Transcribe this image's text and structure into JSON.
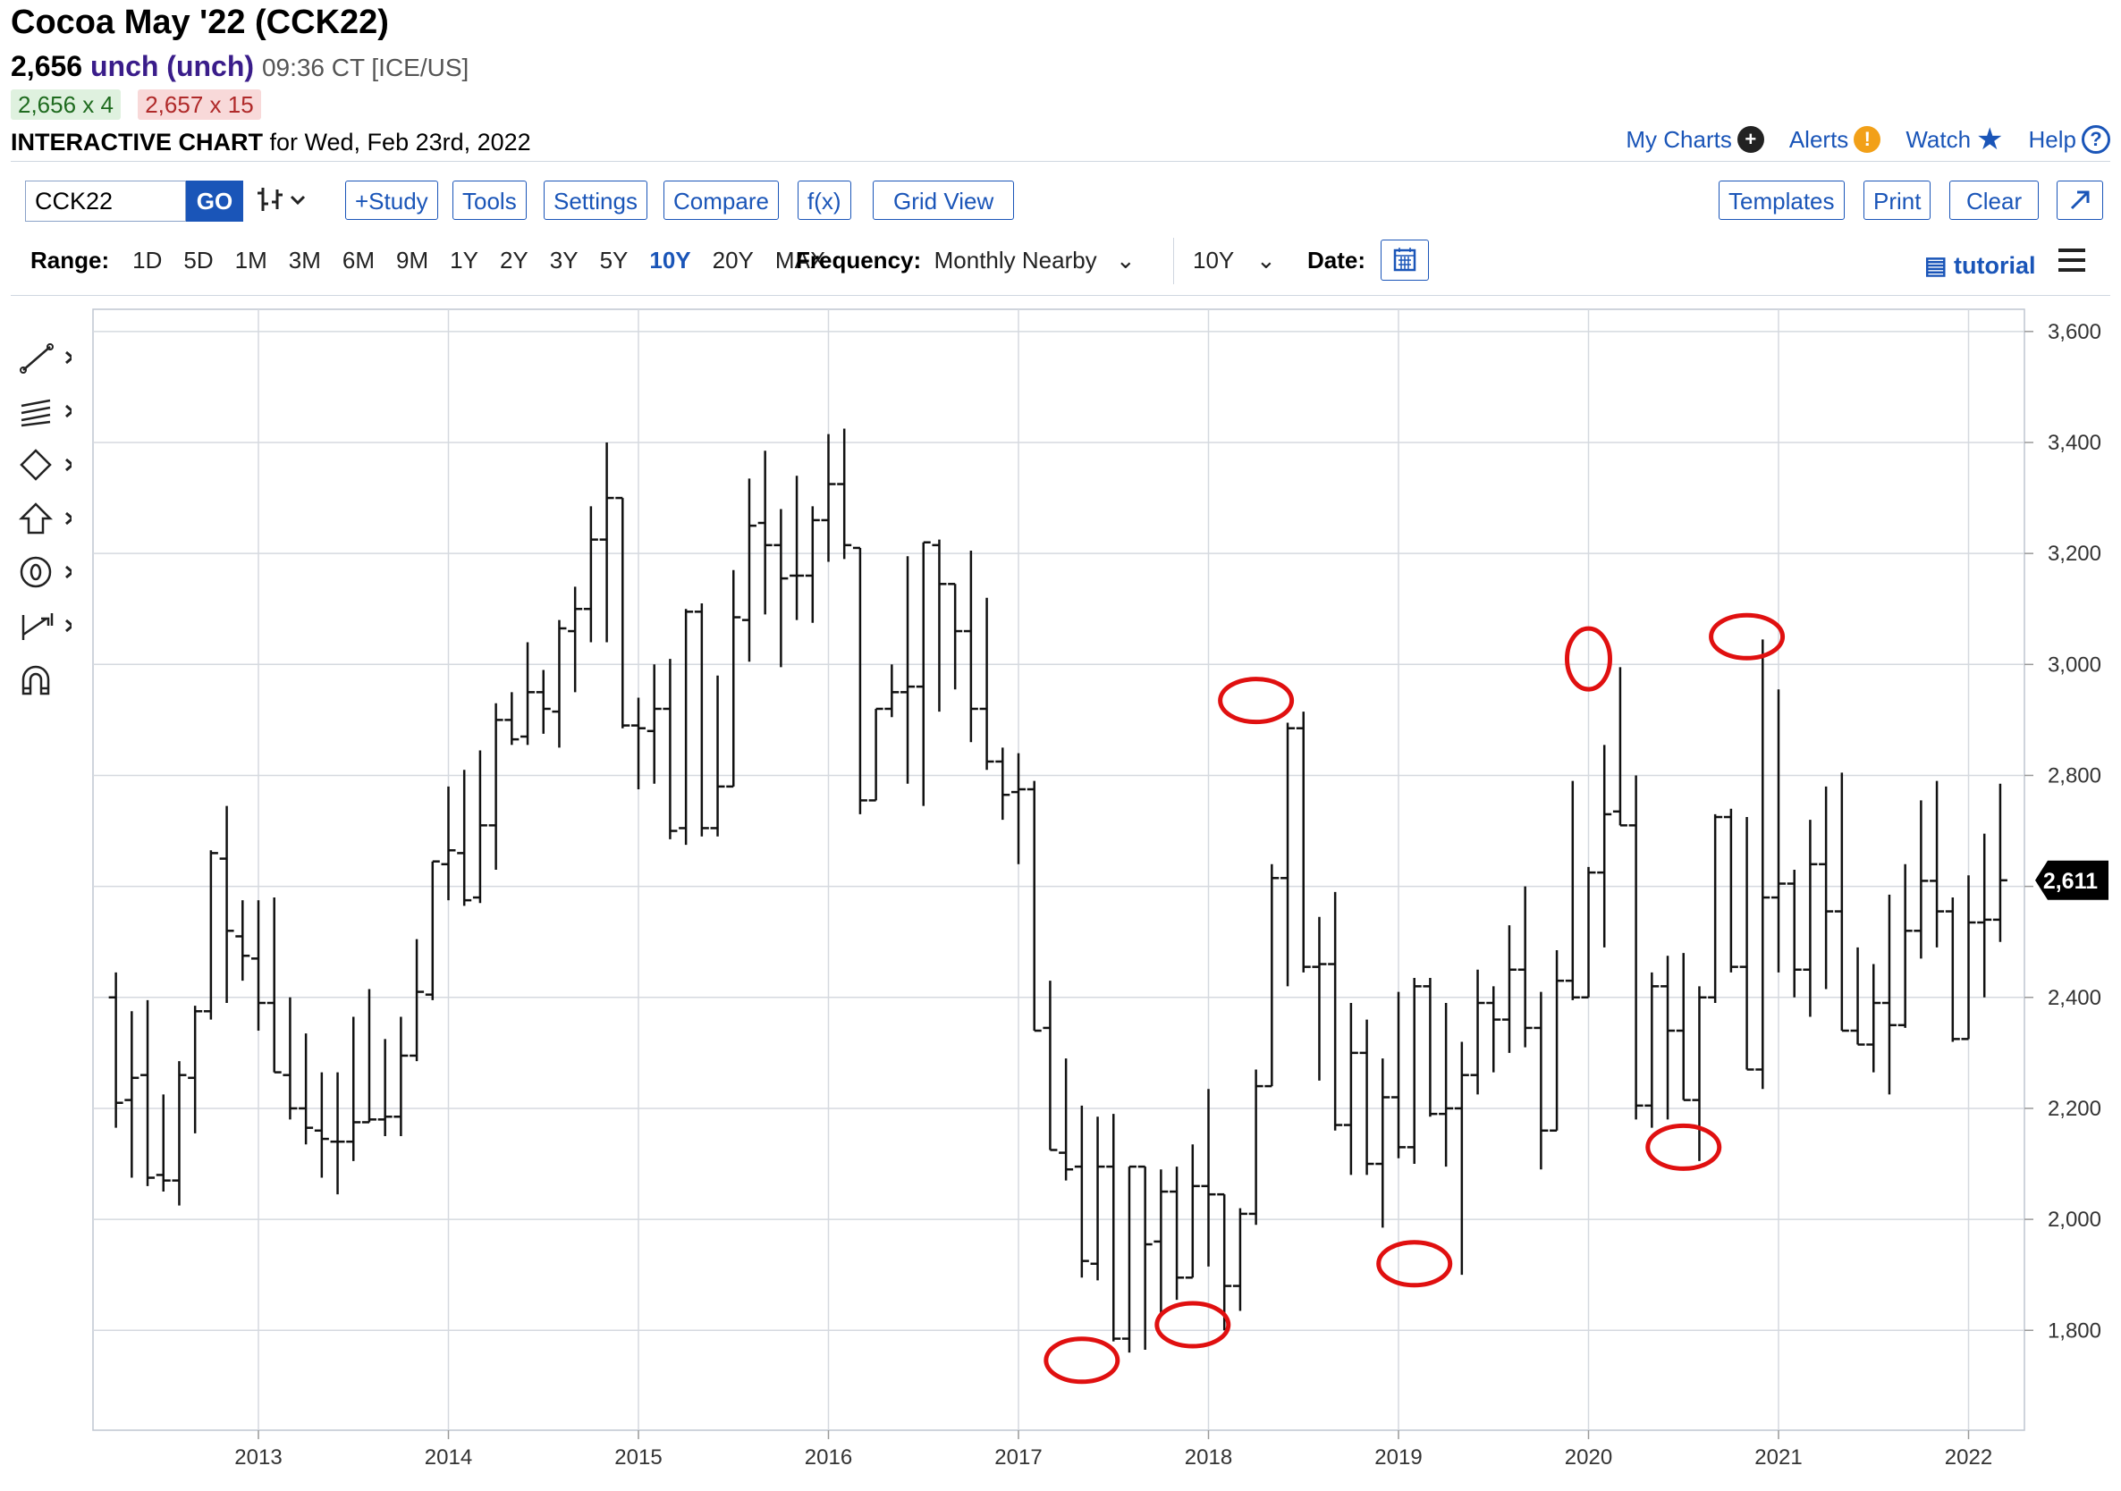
{
  "header": {
    "title": "Cocoa May '22 (CCK22)",
    "last": "2,656",
    "change": "unch (unch)",
    "time": "09:36 CT [ICE/US]",
    "bid": "2,656 x 4",
    "ask": "2,657 x 15",
    "chart_label": "INTERACTIVE CHART",
    "chart_for": "for Wed, Feb 23rd, 2022"
  },
  "links": {
    "my_charts": "My Charts",
    "alerts": "Alerts",
    "watch": "Watch",
    "help": "Help"
  },
  "toolbar": {
    "symbol": "CCK22",
    "go": "GO",
    "study": "+Study",
    "tools": "Tools",
    "settings": "Settings",
    "compare": "Compare",
    "fx": "f(x)",
    "grid": "Grid View",
    "templates": "Templates",
    "print": "Print",
    "clear": "Clear"
  },
  "range": {
    "label": "Range:",
    "items": [
      "1D",
      "5D",
      "1M",
      "3M",
      "6M",
      "9M",
      "1Y",
      "2Y",
      "3Y",
      "5Y",
      "10Y",
      "20Y",
      "MAX"
    ],
    "active": "10Y",
    "freq_label": "Frequency:",
    "freq_value": "Monthly Nearby",
    "period": "10Y",
    "date_label": "Date:",
    "tutorial": "tutorial"
  },
  "icons": [
    "line-tool-icon",
    "fib-tool-icon",
    "shape-tool-icon",
    "arrow-tool-icon",
    "text-tool-icon",
    "measure-tool-icon",
    "magnet-icon"
  ],
  "colors": {
    "link": "#1a55b8",
    "highlight": "#e01010",
    "price_box": "#000000"
  },
  "chart_data": {
    "type": "ohlc",
    "x_ticks": [
      "2013",
      "2014",
      "2015",
      "2016",
      "2017",
      "2018",
      "2019",
      "2020",
      "2021",
      "2022"
    ],
    "y_ticks": [
      "3,600",
      "3,400",
      "3,200",
      "3,000",
      "2,800",
      "2,600",
      "2,400",
      "2,200",
      "2,000",
      "1,800"
    ],
    "ylim": [
      1620,
      3640
    ],
    "last_price_label": "2,611",
    "last_price": 2611,
    "start": "2012-04",
    "bars": [
      [
        2400,
        2445,
        2165,
        2210
      ],
      [
        2215,
        2375,
        2075,
        2255
      ],
      [
        2260,
        2395,
        2060,
        2075
      ],
      [
        2080,
        2225,
        2050,
        2070
      ],
      [
        2070,
        2285,
        2025,
        2260
      ],
      [
        2255,
        2385,
        2155,
        2375
      ],
      [
        2375,
        2665,
        2360,
        2660
      ],
      [
        2650,
        2745,
        2390,
        2520
      ],
      [
        2510,
        2575,
        2430,
        2475
      ],
      [
        2470,
        2575,
        2340,
        2390
      ],
      [
        2390,
        2580,
        2295,
        2265
      ],
      [
        2260,
        2400,
        2180,
        2200
      ],
      [
        2200,
        2335,
        2135,
        2165
      ],
      [
        2160,
        2265,
        2075,
        2145
      ],
      [
        2140,
        2265,
        2045,
        2140
      ],
      [
        2140,
        2365,
        2105,
        2175
      ],
      [
        2175,
        2415,
        2185,
        2180
      ],
      [
        2180,
        2325,
        2150,
        2185
      ],
      [
        2185,
        2365,
        2150,
        2295
      ],
      [
        2295,
        2505,
        2285,
        2410
      ],
      [
        2405,
        2640,
        2395,
        2645
      ],
      [
        2640,
        2780,
        2575,
        2665
      ],
      [
        2660,
        2810,
        2565,
        2575
      ],
      [
        2580,
        2845,
        2570,
        2710
      ],
      [
        2710,
        2930,
        2630,
        2900
      ],
      [
        2900,
        2950,
        2855,
        2865
      ],
      [
        2870,
        3040,
        2855,
        2950
      ],
      [
        2950,
        2990,
        2875,
        2920
      ],
      [
        2915,
        3080,
        2850,
        3065
      ],
      [
        3060,
        3140,
        2950,
        3100
      ],
      [
        3100,
        3285,
        3040,
        3225
      ],
      [
        3225,
        3400,
        3040,
        3300
      ],
      [
        3300,
        3275,
        2885,
        2890
      ],
      [
        2890,
        2940,
        2775,
        2885
      ],
      [
        2880,
        3000,
        2785,
        2920
      ],
      [
        2920,
        3010,
        2685,
        2700
      ],
      [
        2705,
        3100,
        2675,
        3095
      ],
      [
        3095,
        3110,
        2690,
        2705
      ],
      [
        2705,
        2980,
        2690,
        2780
      ],
      [
        2780,
        3170,
        2880,
        3085
      ],
      [
        3080,
        3335,
        3005,
        3250
      ],
      [
        3255,
        3385,
        3090,
        3215
      ],
      [
        3215,
        3280,
        2995,
        3155
      ],
      [
        3160,
        3340,
        3080,
        3160
      ],
      [
        3160,
        3285,
        3075,
        3260
      ],
      [
        3260,
        3415,
        3185,
        3325
      ],
      [
        3325,
        3425,
        3190,
        3215
      ],
      [
        3210,
        3210,
        2730,
        2755
      ],
      [
        2755,
        2900,
        2760,
        2920
      ],
      [
        2920,
        3000,
        2905,
        2950
      ],
      [
        2950,
        3195,
        2785,
        2960
      ],
      [
        2960,
        3190,
        2745,
        3220
      ],
      [
        3215,
        3225,
        2915,
        3145
      ],
      [
        3145,
        3135,
        2955,
        3060
      ],
      [
        3060,
        3205,
        2860,
        2920
      ],
      [
        2920,
        3120,
        2810,
        2825
      ],
      [
        2825,
        2850,
        2720,
        2765
      ],
      [
        2770,
        2840,
        2640,
        2775
      ],
      [
        2775,
        2790,
        2340,
        2340
      ],
      [
        2345,
        2430,
        2185,
        2125
      ],
      [
        2120,
        2290,
        2070,
        2090
      ],
      [
        2095,
        2205,
        1895,
        1925
      ],
      [
        1920,
        2185,
        1890,
        2095
      ],
      [
        2095,
        2190,
        1780,
        1785
      ],
      [
        1785,
        2090,
        1760,
        2095
      ],
      [
        2095,
        2085,
        1765,
        1955
      ],
      [
        1960,
        2090,
        1825,
        2050
      ],
      [
        2050,
        2095,
        1855,
        1895
      ],
      [
        1895,
        2135,
        1945,
        2060
      ],
      [
        2060,
        2235,
        1915,
        2045
      ],
      [
        2045,
        2040,
        1800,
        1880
      ],
      [
        1880,
        2020,
        1835,
        2010
      ],
      [
        2010,
        2270,
        1990,
        2240
      ],
      [
        2240,
        2640,
        2250,
        2615
      ],
      [
        2615,
        2895,
        2420,
        2885
      ],
      [
        2885,
        2915,
        2445,
        2455
      ],
      [
        2455,
        2545,
        2250,
        2460
      ],
      [
        2460,
        2590,
        2160,
        2170
      ],
      [
        2170,
        2390,
        2080,
        2300
      ],
      [
        2300,
        2360,
        2080,
        2100
      ],
      [
        2100,
        2290,
        1985,
        2220
      ],
      [
        2220,
        2410,
        2110,
        2130
      ],
      [
        2130,
        2435,
        2100,
        2420
      ],
      [
        2420,
        2435,
        2185,
        2190
      ],
      [
        2190,
        2390,
        2095,
        2200
      ],
      [
        2200,
        2320,
        1900,
        2260
      ],
      [
        2260,
        2450,
        2225,
        2390
      ],
      [
        2390,
        2420,
        2265,
        2360
      ],
      [
        2360,
        2530,
        2300,
        2450
      ],
      [
        2450,
        2600,
        2310,
        2345
      ],
      [
        2345,
        2410,
        2090,
        2160
      ],
      [
        2160,
        2485,
        2170,
        2430
      ],
      [
        2430,
        2790,
        2395,
        2400
      ],
      [
        2400,
        2635,
        2400,
        2625
      ],
      [
        2625,
        2855,
        2490,
        2730
      ],
      [
        2735,
        2995,
        2720,
        2710
      ],
      [
        2710,
        2800,
        2180,
        2205
      ],
      [
        2205,
        2445,
        2165,
        2420
      ],
      [
        2420,
        2475,
        2180,
        2340
      ],
      [
        2340,
        2480,
        2215,
        2215
      ],
      [
        2215,
        2420,
        2105,
        2400
      ],
      [
        2400,
        2730,
        2390,
        2725
      ],
      [
        2725,
        2740,
        2445,
        2455
      ],
      [
        2455,
        2725,
        2375,
        2270
      ],
      [
        2270,
        3045,
        2235,
        2580
      ],
      [
        2580,
        2955,
        2445,
        2605
      ],
      [
        2605,
        2630,
        2400,
        2450
      ],
      [
        2450,
        2720,
        2365,
        2640
      ],
      [
        2640,
        2780,
        2415,
        2555
      ],
      [
        2555,
        2805,
        2360,
        2340
      ],
      [
        2340,
        2490,
        2325,
        2315
      ],
      [
        2315,
        2460,
        2265,
        2390
      ],
      [
        2390,
        2585,
        2225,
        2350
      ],
      [
        2350,
        2640,
        2345,
        2520
      ],
      [
        2520,
        2755,
        2470,
        2610
      ],
      [
        2610,
        2790,
        2490,
        2555
      ],
      [
        2555,
        2580,
        2320,
        2325
      ],
      [
        2325,
        2620,
        2475,
        2535
      ],
      [
        2535,
        2695,
        2400,
        2540
      ],
      [
        2540,
        2785,
        2500,
        2611
      ]
    ],
    "highlights": [
      {
        "x": "2017-05",
        "y": 1746
      },
      {
        "x": "2017-12",
        "y": 1810
      },
      {
        "x": "2018-04",
        "y": 2935
      },
      {
        "x": "2019-02",
        "y": 1920
      },
      {
        "x": "2020-01",
        "y": 3010
      },
      {
        "x": "2020-07",
        "y": 2130
      },
      {
        "x": "2020-11",
        "y": 3050
      }
    ]
  }
}
